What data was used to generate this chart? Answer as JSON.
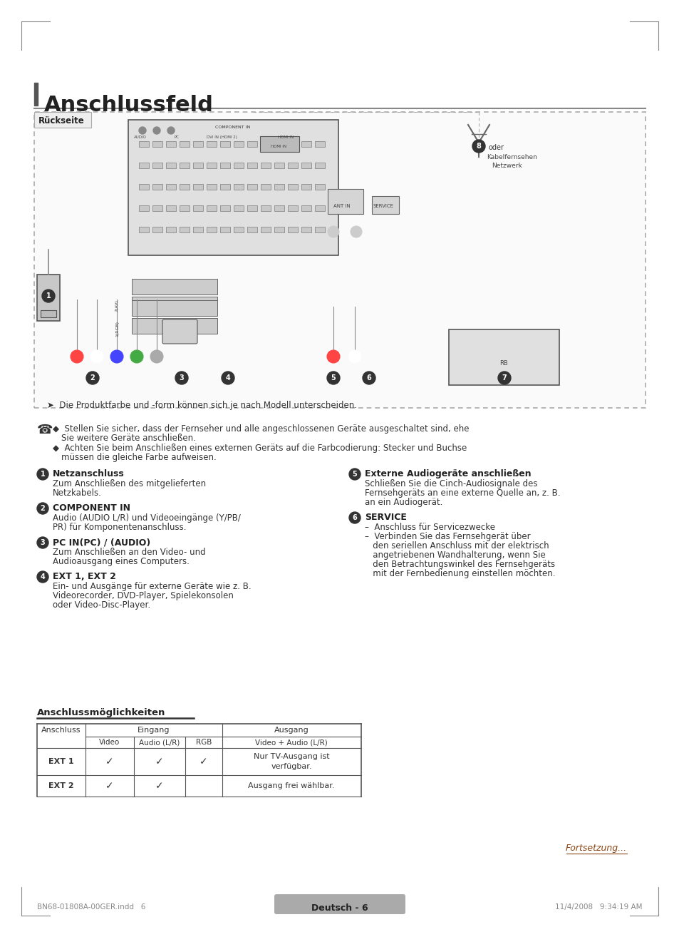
{
  "title": "Anschlussfeld",
  "bg_color": "#ffffff",
  "diagram_box_label": "Rückseite",
  "note_line1": "◆  Stellen Sie sicher, dass der Fernseher und alle angeschlossenen Geräte ausgeschaltet sind, ehe",
  "note_line1b": "Sie weitere Geräte anschließen.",
  "note_line2": "◆  Achten Sie beim Anschließen eines externen Geräts auf die Farbcodierung: Stecker und Buchse",
  "note_line2b": "müssen die gleiche Farbe aufweisen.",
  "items_left": [
    {
      "num": "1",
      "title": "Netzanschluss",
      "body": "Zum Anschließen des mitgelieferten\nNetzkabels."
    },
    {
      "num": "2",
      "title": "COMPONENT IN",
      "body": "Audio (AUDIO L/R) und Videoeingänge (Y/PB/\nPR) für Komponentenanschluss."
    },
    {
      "num": "3",
      "title": "PC IN(PC) / (AUDIO)",
      "body": "Zum Anschließen an den Video- und\nAudioausgang eines Computers."
    },
    {
      "num": "4",
      "title": "EXT 1, EXT 2",
      "body": "Ein- und Ausgänge für externe Geräte wie z. B.\nVideorecorder, DVD-Player, Spielekonsolen\noder Video-Disc-Player."
    }
  ],
  "items_right": [
    {
      "num": "5",
      "title": "Externe Audiogeräte anschließen",
      "body": "Schließen Sie die Cinch-Audiosignale des\nFernsehgeräts an eine externe Quelle an, z. B.\nan ein Audiogerät."
    },
    {
      "num": "6",
      "title": "SERVICE",
      "body": "–  Anschluss für Servicezwecke\n–  Verbinden Sie das Fernsehgerät über\n   den seriellen Anschluss mit der elektrisch\n   angetriebenen Wandhalterung, wenn Sie\n   den Betrachtungswinkel des Fernsehgeräts\n   mit der Fernbedienung einstellen möchten."
    }
  ],
  "table_title": "Anschlussmöglichkeiten",
  "table_col_header1": "Anschluss",
  "table_col_header2": "Eingang",
  "table_col_header3": "Ausgang",
  "table_col_sub1": "Video",
  "table_col_sub2": "Audio (L/R)",
  "table_col_sub3": "RGB",
  "table_col_sub4": "Video + Audio (L/R)",
  "table_rows": [
    [
      "EXT 1",
      "✓",
      "✓",
      "✓",
      "Nur TV-Ausgang ist\nverfügbar."
    ],
    [
      "EXT 2",
      "✓",
      "✓",
      "",
      "Ausgang frei wählbar."
    ]
  ],
  "diagram_note": "➤  Die Produktfarbe und -form können sich je nach Modell unterscheiden.",
  "footer_left": "BN68-01808A-00GER.indd   6",
  "footer_right": "11/4/2008   9:34:19 AM",
  "footer_center": "Deutsch - 6",
  "fortsetzung": "Fortsetzung...",
  "oder_label": "oder",
  "kabel_line1": "Kabelfernsehen",
  "kabel_line2": "Netzwerk"
}
